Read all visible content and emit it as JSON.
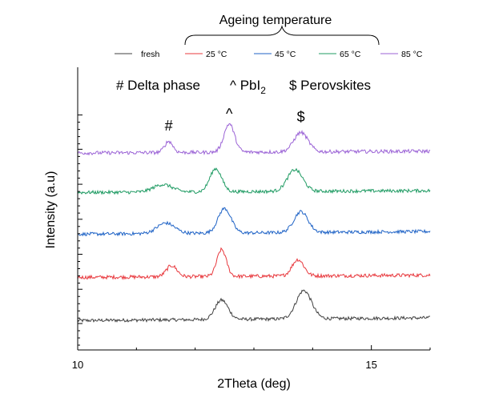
{
  "chart_data": {
    "type": "line",
    "title": "",
    "xlabel": "2Theta (deg)",
    "ylabel": "Intensity (a.u)",
    "xlim": [
      10,
      16
    ],
    "xticks": [
      10,
      15
    ],
    "xtick_labels": [
      "10",
      "15"
    ],
    "y_tick_labels_shown": false,
    "legend_placement": "top",
    "legend_group_label": "Ageing temperature",
    "annotation_text": [
      "# Delta phase",
      "^ PbI",
      "2",
      "$ Perovskites"
    ],
    "peak_markers": [
      {
        "label": "#",
        "x": 11.55
      },
      {
        "label": "^",
        "x": 12.58
      },
      {
        "label": "$",
        "x": 13.8
      }
    ],
    "series": [
      {
        "name": "fresh",
        "color": "#404040",
        "offset": 0,
        "baseline": 0.4,
        "slope": 0.06,
        "noise": 0.22,
        "peaks": [
          {
            "center": 12.45,
            "height": 2.6,
            "width": 0.11
          },
          {
            "center": 13.85,
            "height": 3.8,
            "width": 0.13
          }
        ]
      },
      {
        "name": "25 °C",
        "color": "#e8383d",
        "offset": 5.8,
        "baseline": 0.4,
        "slope": 0.05,
        "noise": 0.24,
        "peaks": [
          {
            "center": 11.6,
            "height": 1.5,
            "width": 0.09
          },
          {
            "center": 12.45,
            "height": 3.6,
            "width": 0.08
          },
          {
            "center": 13.75,
            "height": 2.2,
            "width": 0.1
          }
        ]
      },
      {
        "name": "45 °C",
        "color": "#1f63c6",
        "offset": 11.6,
        "baseline": 0.4,
        "slope": 0.06,
        "noise": 0.22,
        "peaks": [
          {
            "center": 11.5,
            "height": 1.4,
            "width": 0.15
          },
          {
            "center": 12.5,
            "height": 3.3,
            "width": 0.11
          },
          {
            "center": 13.8,
            "height": 2.8,
            "width": 0.12
          }
        ]
      },
      {
        "name": "65 °C",
        "color": "#1f9b63",
        "offset": 17.2,
        "baseline": 0.4,
        "slope": 0.04,
        "noise": 0.22,
        "peaks": [
          {
            "center": 11.45,
            "height": 1.0,
            "width": 0.16
          },
          {
            "center": 12.35,
            "height": 3.1,
            "width": 0.1
          },
          {
            "center": 13.7,
            "height": 2.9,
            "width": 0.13
          }
        ]
      },
      {
        "name": "85 °C",
        "color": "#9b63d6",
        "offset": 22.5,
        "baseline": 0.4,
        "slope": 0.04,
        "noise": 0.24,
        "peaks": [
          {
            "center": 11.55,
            "height": 1.5,
            "width": 0.07
          },
          {
            "center": 12.58,
            "height": 3.8,
            "width": 0.09
          },
          {
            "center": 13.8,
            "height": 2.6,
            "width": 0.12
          }
        ]
      }
    ]
  }
}
